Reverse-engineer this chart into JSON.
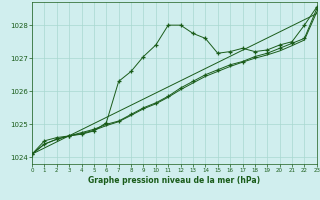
{
  "background_color": "#d0eeee",
  "plot_bg_color": "#d0eeee",
  "grid_color": "#a8d8d0",
  "line_color": "#1a5c1a",
  "xlabel": "Graphe pression niveau de la mer (hPa)",
  "xlim": [
    0,
    23
  ],
  "ylim": [
    1023.8,
    1028.7
  ],
  "yticks": [
    1024,
    1025,
    1026,
    1027,
    1028
  ],
  "xticks": [
    0,
    1,
    2,
    3,
    4,
    5,
    6,
    7,
    8,
    9,
    10,
    11,
    12,
    13,
    14,
    15,
    16,
    17,
    18,
    19,
    20,
    21,
    22,
    23
  ],
  "series1_x": [
    0,
    1,
    2,
    3,
    4,
    5,
    6,
    7,
    8,
    9,
    10,
    11,
    12,
    13,
    14,
    15,
    16,
    17,
    18,
    19,
    20,
    21,
    22,
    23
  ],
  "series1_y": [
    1024.1,
    1024.5,
    1024.6,
    1024.65,
    1024.7,
    1024.8,
    1025.05,
    1026.3,
    1026.6,
    1027.05,
    1027.4,
    1028.0,
    1028.0,
    1027.75,
    1027.6,
    1027.15,
    1027.2,
    1027.3,
    1027.2,
    1027.25,
    1027.4,
    1027.5,
    1028.0,
    1028.55
  ],
  "series2_x": [
    0,
    1,
    2,
    3,
    4,
    5,
    6,
    7,
    8,
    9,
    10,
    11,
    12,
    13,
    14,
    15,
    16,
    17,
    18,
    19,
    20,
    21,
    22,
    23
  ],
  "series2_y": [
    1024.1,
    1024.4,
    1024.55,
    1024.65,
    1024.75,
    1024.85,
    1025.0,
    1025.1,
    1025.3,
    1025.5,
    1025.65,
    1025.85,
    1026.1,
    1026.3,
    1026.5,
    1026.65,
    1026.8,
    1026.9,
    1027.05,
    1027.15,
    1027.3,
    1027.45,
    1027.6,
    1028.5
  ],
  "series3_x": [
    0,
    1,
    2,
    3,
    4,
    5,
    6,
    7,
    8,
    9,
    10,
    11,
    12,
    13,
    14,
    15,
    16,
    17,
    18,
    19,
    20,
    21,
    22,
    23
  ],
  "series3_y": [
    1024.1,
    1024.4,
    1024.55,
    1024.65,
    1024.72,
    1024.82,
    1024.96,
    1025.08,
    1025.27,
    1025.47,
    1025.62,
    1025.82,
    1026.05,
    1026.25,
    1026.45,
    1026.6,
    1026.75,
    1026.88,
    1027.0,
    1027.1,
    1027.22,
    1027.38,
    1027.55,
    1028.4
  ],
  "series4_x": [
    0,
    23
  ],
  "series4_y": [
    1024.1,
    1028.35
  ]
}
